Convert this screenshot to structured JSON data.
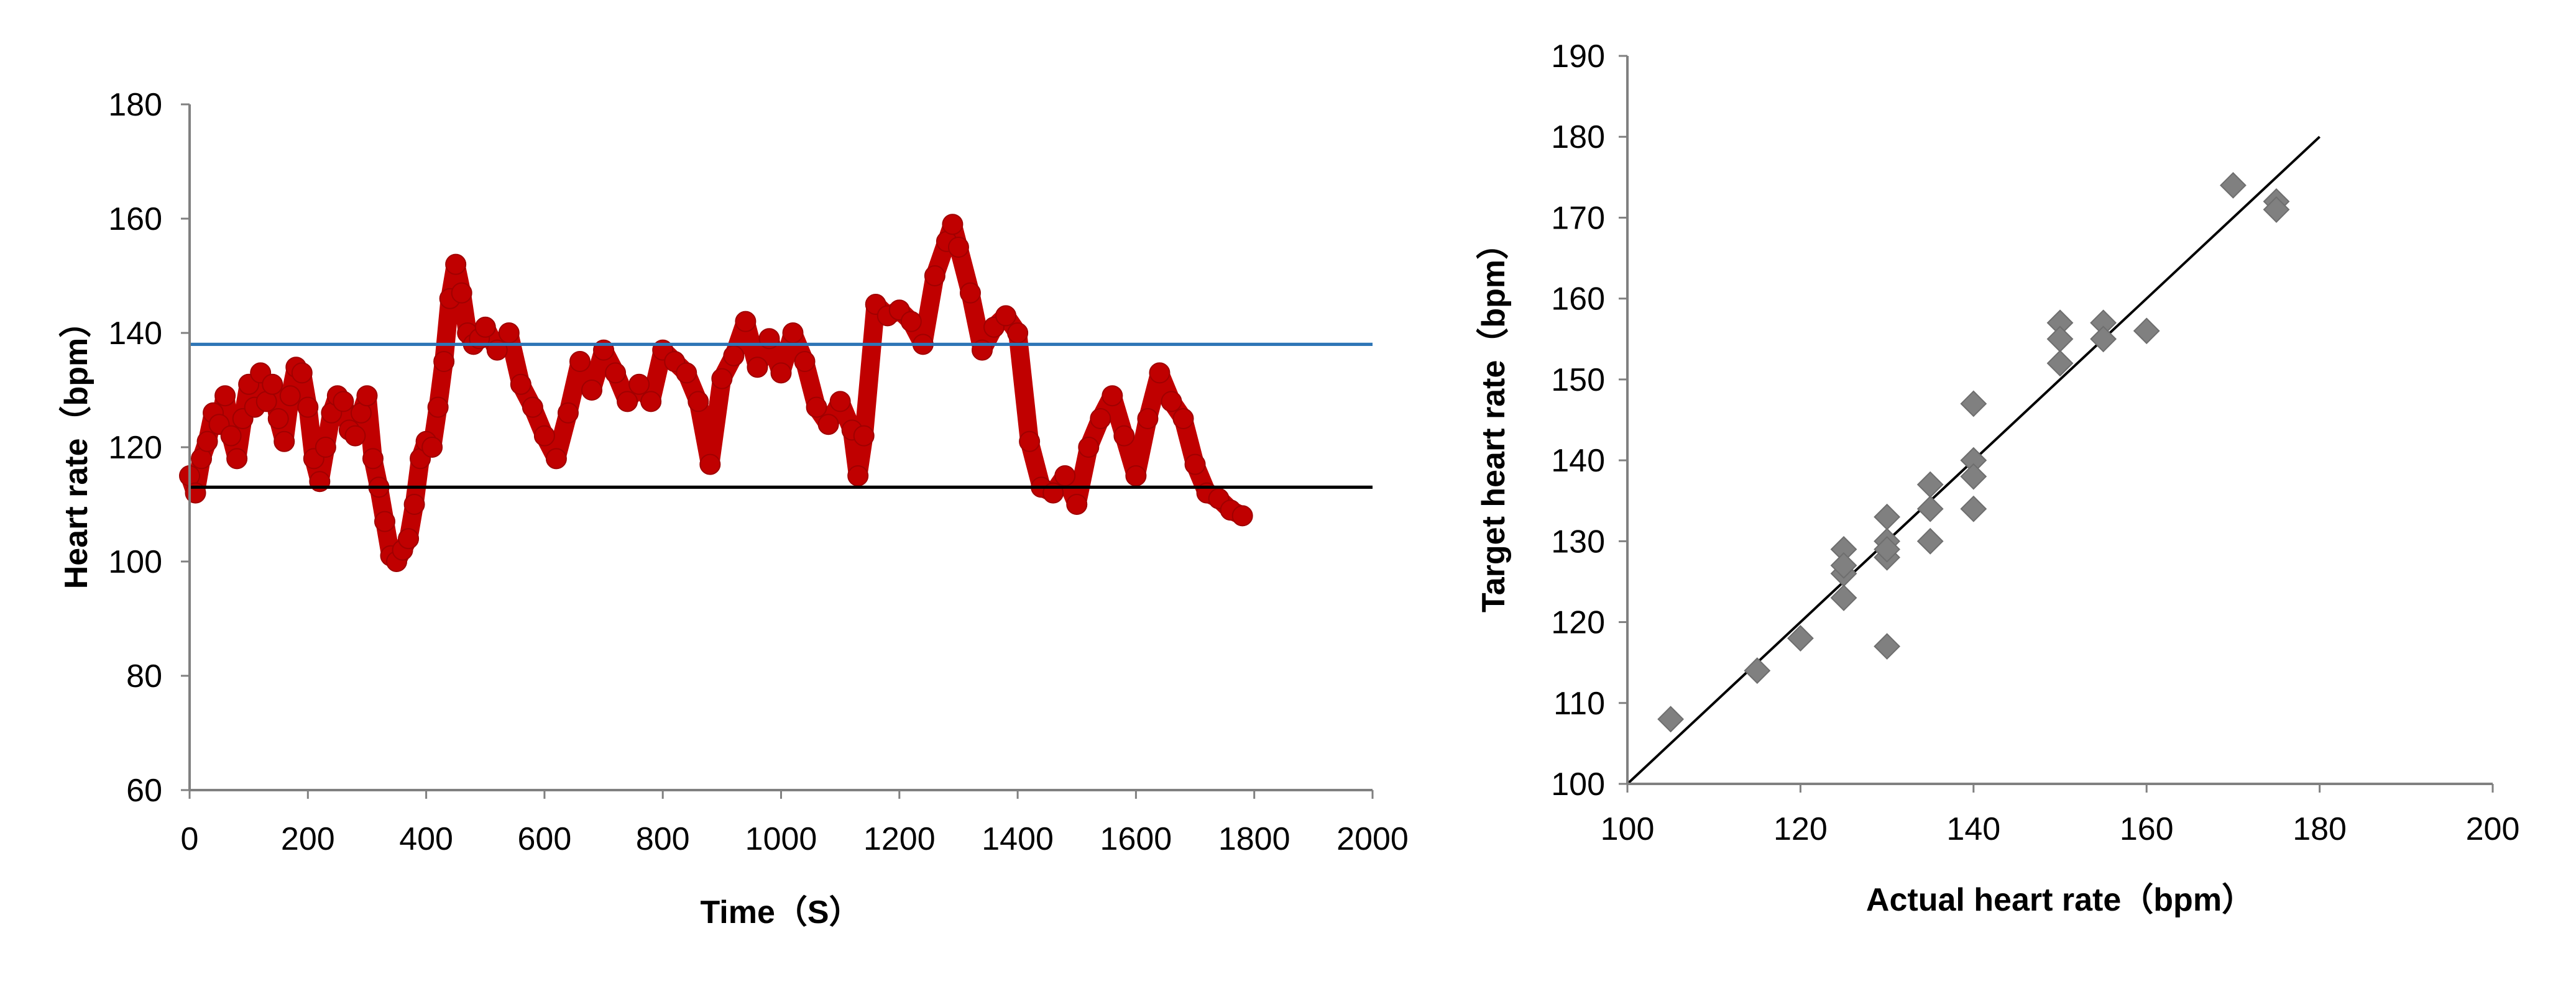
{
  "chart_data": [
    {
      "type": "line",
      "xlabel": "Time（S）",
      "ylabel": "Heart rate（bpm）",
      "xlim": [
        0,
        2000
      ],
      "ylim": [
        60,
        180
      ],
      "xticks": [
        "0",
        "200",
        "400",
        "600",
        "800",
        "1000",
        "1200",
        "1400",
        "1600",
        "1800",
        "2000"
      ],
      "yticks": [
        "60",
        "80",
        "100",
        "120",
        "140",
        "160",
        "180"
      ],
      "grid": false,
      "series": [
        {
          "color": "#c00000",
          "style": "thick-dotted",
          "x": [
            0,
            10,
            20,
            30,
            40,
            50,
            60,
            70,
            80,
            90,
            100,
            110,
            120,
            130,
            140,
            150,
            160,
            170,
            180,
            190,
            200,
            210,
            220,
            230,
            240,
            250,
            260,
            270,
            280,
            290,
            300,
            310,
            320,
            330,
            340,
            350,
            360,
            370,
            380,
            390,
            400,
            410,
            420,
            430,
            440,
            450,
            460,
            470,
            480,
            490,
            500,
            520,
            540,
            560,
            580,
            600,
            620,
            640,
            660,
            680,
            700,
            720,
            740,
            760,
            780,
            800,
            820,
            840,
            860,
            880,
            900,
            920,
            940,
            960,
            980,
            1000,
            1020,
            1040,
            1060,
            1080,
            1100,
            1120,
            1130,
            1140,
            1160,
            1180,
            1200,
            1220,
            1240,
            1260,
            1280,
            1290,
            1300,
            1320,
            1340,
            1360,
            1380,
            1400,
            1420,
            1440,
            1460,
            1480,
            1500,
            1520,
            1540,
            1560,
            1580,
            1600,
            1620,
            1640,
            1660,
            1680,
            1700,
            1720,
            1740,
            1760,
            1780
          ],
          "y": [
            115,
            112,
            118,
            121,
            126,
            124,
            129,
            122,
            118,
            125,
            131,
            127,
            133,
            128,
            131,
            125,
            121,
            129,
            134,
            133,
            127,
            118,
            114,
            120,
            126,
            129,
            128,
            123,
            122,
            126,
            129,
            118,
            113,
            107,
            101,
            100,
            102,
            104,
            110,
            118,
            121,
            120,
            127,
            135,
            146,
            152,
            147,
            140,
            138,
            139,
            141,
            137,
            140,
            131,
            127,
            122,
            118,
            126,
            135,
            130,
            137,
            133,
            128,
            131,
            128,
            137,
            135,
            133,
            128,
            117,
            132,
            136,
            142,
            134,
            139,
            133,
            140,
            135,
            127,
            124,
            128,
            123,
            115,
            122,
            145,
            143,
            144,
            142,
            138,
            150,
            156,
            159,
            155,
            147,
            137,
            141,
            143,
            140,
            121,
            113,
            112,
            115,
            110,
            120,
            125,
            129,
            122,
            115,
            125,
            133,
            128,
            125,
            117,
            112,
            111,
            109,
            108
          ]
        },
        {
          "color": "#2e75b6",
          "style": "hline",
          "y": 138
        },
        {
          "color": "#000000",
          "style": "hline",
          "y": 113
        }
      ]
    },
    {
      "type": "scatter",
      "xlabel": "Actual heart rate（bpm）",
      "ylabel": "Target heart rate（bpm）",
      "xlim": [
        100,
        200
      ],
      "ylim": [
        100,
        190
      ],
      "xticks": [
        "100",
        "120",
        "140",
        "160",
        "180",
        "200"
      ],
      "yticks": [
        "100",
        "110",
        "120",
        "130",
        "140",
        "150",
        "160",
        "170",
        "180",
        "190"
      ],
      "grid": false,
      "series": [
        {
          "color": "#808080",
          "marker": "diamond",
          "points": [
            [
              105,
              108
            ],
            [
              115,
              114
            ],
            [
              120,
              118
            ],
            [
              125,
              129
            ],
            [
              125,
              126
            ],
            [
              125,
              123
            ],
            [
              125,
              127
            ],
            [
              130,
              133
            ],
            [
              130,
              130
            ],
            [
              130,
              128
            ],
            [
              130,
              117
            ],
            [
              130,
              129
            ],
            [
              135,
              137
            ],
            [
              135,
              134
            ],
            [
              135,
              130
            ],
            [
              140,
              147
            ],
            [
              140,
              140
            ],
            [
              140,
              138
            ],
            [
              140,
              134
            ],
            [
              150,
              157
            ],
            [
              150,
              155
            ],
            [
              150,
              152
            ],
            [
              155,
              157
            ],
            [
              155,
              155
            ],
            [
              160,
              156
            ],
            [
              170,
              174
            ],
            [
              175,
              172
            ],
            [
              175,
              171
            ]
          ]
        }
      ],
      "reference_line": {
        "x": [
          100,
          180
        ],
        "y": [
          100,
          180
        ],
        "color": "#000000"
      }
    }
  ]
}
